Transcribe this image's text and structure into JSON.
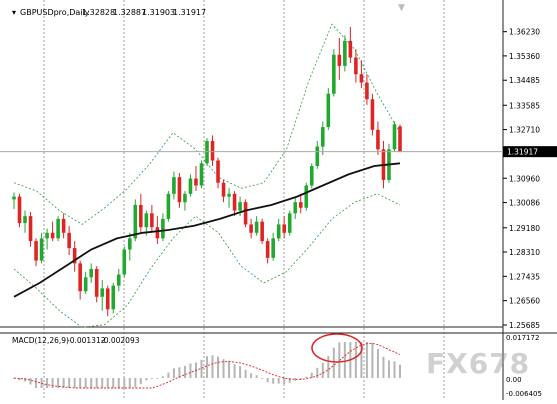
{
  "window": {
    "symbol_title": "GBPUSDpro,Daily",
    "ohlc": [
      "1.32828",
      "1.32887",
      "1.31903",
      "1.31917"
    ]
  },
  "indicators": {
    "macd_label": "MACD(12,26,9)",
    "macd_values": [
      "-0.001312",
      "-0.002093"
    ]
  },
  "price_axis": {
    "labels": [
      "1.36230",
      "1.35360",
      "1.34485",
      "1.33585",
      "1.32710",
      "1.30960",
      "1.30086",
      "1.29180",
      "1.28310",
      "1.27435",
      "1.26560",
      "1.25685"
    ],
    "current_price": "1.31917"
  },
  "macd_axis": {
    "labels": [
      "0.017172",
      "0.00",
      "-0.006405"
    ]
  },
  "watermark": "FX678",
  "colors": {
    "bull": "#22a82e",
    "bear": "#e02424",
    "bands": "#2e9e3e",
    "moving_average": "#111111",
    "grid": "#555555",
    "highlight": "#e02424"
  },
  "chart_data": {
    "type": "candlestick",
    "title": "GBPUSDpro,Daily",
    "ylim": [
      1.25685,
      1.3665
    ],
    "indicators": [
      "Bollinger Bands",
      "Moving Average",
      "MACD(12,26,9)"
    ],
    "grid": true,
    "last_bar": {
      "open": 1.32828,
      "high": 1.32887,
      "low": 1.31903,
      "close": 1.31917
    },
    "candles": [
      [
        1.302,
        1.3045,
        1.2985,
        1.303
      ],
      [
        1.303,
        1.304,
        1.292,
        1.2935
      ],
      [
        1.2935,
        1.298,
        1.29,
        1.296
      ],
      [
        1.296,
        1.2975,
        1.285,
        1.287
      ],
      [
        1.287,
        1.288,
        1.278,
        1.28
      ],
      [
        1.28,
        1.29,
        1.279,
        1.288
      ],
      [
        1.288,
        1.2915,
        1.284,
        1.29
      ],
      [
        1.29,
        1.294,
        1.287,
        1.288
      ],
      [
        1.288,
        1.296,
        1.287,
        1.295
      ],
      [
        1.295,
        1.297,
        1.288,
        1.29
      ],
      [
        1.29,
        1.2925,
        1.282,
        1.2845
      ],
      [
        1.2845,
        1.287,
        1.276,
        1.279
      ],
      [
        1.279,
        1.28,
        1.266,
        1.269
      ],
      [
        1.269,
        1.276,
        1.268,
        1.274
      ],
      [
        1.274,
        1.279,
        1.272,
        1.277
      ],
      [
        1.277,
        1.278,
        1.265,
        1.267
      ],
      [
        1.267,
        1.273,
        1.262,
        1.27
      ],
      [
        1.27,
        1.271,
        1.26,
        1.2625
      ],
      [
        1.2625,
        1.272,
        1.261,
        1.271
      ],
      [
        1.271,
        1.277,
        1.269,
        1.275
      ],
      [
        1.275,
        1.285,
        1.274,
        1.284
      ],
      [
        1.284,
        1.29,
        1.28,
        1.288
      ],
      [
        1.288,
        1.302,
        1.287,
        1.3
      ],
      [
        1.3,
        1.304,
        1.29,
        1.292
      ],
      [
        1.292,
        1.298,
        1.289,
        1.297
      ],
      [
        1.297,
        1.3,
        1.29,
        1.292
      ],
      [
        1.292,
        1.296,
        1.286,
        1.288
      ],
      [
        1.288,
        1.297,
        1.287,
        1.295
      ],
      [
        1.295,
        1.305,
        1.294,
        1.304
      ],
      [
        1.304,
        1.312,
        1.302,
        1.31
      ],
      [
        1.31,
        1.3115,
        1.299,
        1.301
      ],
      [
        1.301,
        1.305,
        1.298,
        1.304
      ],
      [
        1.304,
        1.311,
        1.303,
        1.3095
      ],
      [
        1.3095,
        1.314,
        1.305,
        1.307
      ],
      [
        1.307,
        1.316,
        1.306,
        1.315
      ],
      [
        1.315,
        1.324,
        1.314,
        1.323
      ],
      [
        1.323,
        1.325,
        1.314,
        1.316
      ],
      [
        1.316,
        1.317,
        1.306,
        1.308
      ],
      [
        1.308,
        1.309,
        1.301,
        1.303
      ],
      [
        1.303,
        1.306,
        1.299,
        1.304
      ],
      [
        1.304,
        1.305,
        1.296,
        1.298
      ],
      [
        1.298,
        1.303,
        1.296,
        1.301
      ],
      [
        1.301,
        1.302,
        1.292,
        1.293
      ],
      [
        1.293,
        1.295,
        1.288,
        1.29
      ],
      [
        1.29,
        1.296,
        1.289,
        1.294
      ],
      [
        1.294,
        1.295,
        1.286,
        1.287
      ],
      [
        1.287,
        1.288,
        1.279,
        1.281
      ],
      [
        1.281,
        1.29,
        1.28,
        1.288
      ],
      [
        1.288,
        1.295,
        1.287,
        1.293
      ],
      [
        1.293,
        1.296,
        1.288,
        1.29
      ],
      [
        1.29,
        1.298,
        1.289,
        1.297
      ],
      [
        1.297,
        1.303,
        1.295,
        1.301
      ],
      [
        1.301,
        1.304,
        1.297,
        1.299
      ],
      [
        1.299,
        1.308,
        1.298,
        1.307
      ],
      [
        1.307,
        1.315,
        1.306,
        1.314
      ],
      [
        1.314,
        1.323,
        1.313,
        1.321
      ],
      [
        1.321,
        1.33,
        1.318,
        1.328
      ],
      [
        1.328,
        1.342,
        1.327,
        1.34
      ],
      [
        1.34,
        1.356,
        1.339,
        1.354
      ],
      [
        1.354,
        1.36,
        1.345,
        1.35
      ],
      [
        1.35,
        1.361,
        1.348,
        1.359
      ],
      [
        1.359,
        1.364,
        1.351,
        1.353
      ],
      [
        1.353,
        1.356,
        1.344,
        1.347
      ],
      [
        1.347,
        1.352,
        1.342,
        1.344
      ],
      [
        1.344,
        1.347,
        1.336,
        1.338
      ],
      [
        1.338,
        1.34,
        1.325,
        1.327
      ],
      [
        1.327,
        1.33,
        1.318,
        1.32
      ],
      [
        1.32,
        1.323,
        1.306,
        1.309
      ],
      [
        1.309,
        1.322,
        1.308,
        1.32
      ],
      [
        1.32,
        1.33,
        1.319,
        1.329
      ],
      [
        1.32828,
        1.32887,
        1.31903,
        1.31917
      ]
    ],
    "moving_average": [
      1.267,
      1.272,
      1.278,
      1.284,
      1.288,
      1.29,
      1.291,
      1.2925,
      1.295,
      1.298,
      1.3,
      1.303,
      1.307,
      1.311,
      1.314,
      1.315
    ],
    "bollinger_upper": [
      1.308,
      1.305,
      1.298,
      1.293,
      1.299,
      1.306,
      1.315,
      1.326,
      1.32,
      1.31,
      1.306,
      1.308,
      1.32,
      1.345,
      1.365,
      1.356,
      1.34,
      1.326
    ],
    "bollinger_lower": [
      1.277,
      1.27,
      1.262,
      1.256,
      1.257,
      1.264,
      1.277,
      1.288,
      1.296,
      1.29,
      1.278,
      1.272,
      1.276,
      1.285,
      1.295,
      1.301,
      1.304,
      1.3
    ],
    "macd": {
      "macd_value": -0.001312,
      "signal_value": -0.002093,
      "ylim": [
        -0.006405,
        0.017172
      ]
    }
  }
}
